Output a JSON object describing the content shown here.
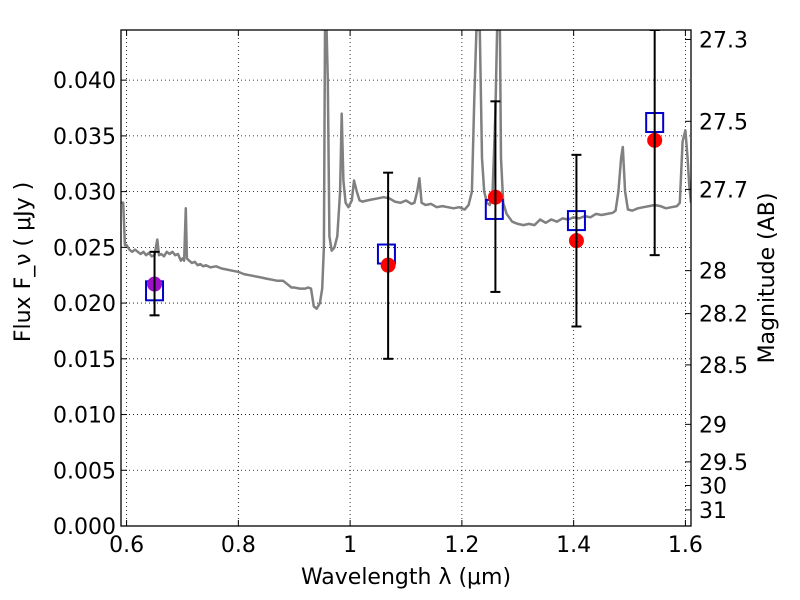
{
  "chart_data": {
    "type": "scatter",
    "title": "",
    "xlabel": "Wavelength  λ (μm)",
    "ylabel": "Flux  F_ν  ( μJy )",
    "ylabel_right": "Magnitude (AB)",
    "xlim": [
      0.59,
      1.61
    ],
    "ylim": [
      0.0,
      0.0445
    ],
    "grid": true,
    "x_ticks": [
      {
        "value": 0.6,
        "label": "0.6"
      },
      {
        "value": 0.8,
        "label": "0.8"
      },
      {
        "value": 1.0,
        "label": "1"
      },
      {
        "value": 1.2,
        "label": "1.2"
      },
      {
        "value": 1.4,
        "label": "1.4"
      },
      {
        "value": 1.6,
        "label": "1.6"
      }
    ],
    "y_ticks": [
      {
        "value": 0.0,
        "label": "0.000"
      },
      {
        "value": 0.005,
        "label": "0.005"
      },
      {
        "value": 0.01,
        "label": "0.010"
      },
      {
        "value": 0.015,
        "label": "0.015"
      },
      {
        "value": 0.02,
        "label": "0.020"
      },
      {
        "value": 0.025,
        "label": "0.025"
      },
      {
        "value": 0.03,
        "label": "0.030"
      },
      {
        "value": 0.035,
        "label": "0.035"
      },
      {
        "value": 0.04,
        "label": "0.040"
      }
    ],
    "right_ticks": [
      {
        "value": 27.3,
        "label": "27.3"
      },
      {
        "value": 27.5,
        "label": "27.5"
      },
      {
        "value": 27.7,
        "label": "27.7"
      },
      {
        "value": 28,
        "label": "28"
      },
      {
        "value": 28.2,
        "label": "28.2"
      },
      {
        "value": 28.5,
        "label": "28.5"
      },
      {
        "value": 29,
        "label": "29"
      },
      {
        "value": 29.5,
        "label": "29.5"
      },
      {
        "value": 30,
        "label": "30"
      },
      {
        "value": 31,
        "label": "31"
      }
    ],
    "series": [
      {
        "kind": "line",
        "color": "#808080",
        "points": [
          [
            0.59,
            0.029
          ],
          [
            0.594,
            0.029
          ],
          [
            0.597,
            0.0252
          ],
          [
            0.6,
            0.0252
          ],
          [
            0.605,
            0.0248
          ],
          [
            0.61,
            0.0246
          ],
          [
            0.615,
            0.0248
          ],
          [
            0.62,
            0.0246
          ],
          [
            0.625,
            0.0244
          ],
          [
            0.63,
            0.0246
          ],
          [
            0.635,
            0.0243
          ],
          [
            0.64,
            0.0245
          ],
          [
            0.645,
            0.0242
          ],
          [
            0.65,
            0.0243
          ],
          [
            0.655,
            0.0257
          ],
          [
            0.658,
            0.0243
          ],
          [
            0.662,
            0.0244
          ],
          [
            0.667,
            0.0242
          ],
          [
            0.672,
            0.0246
          ],
          [
            0.677,
            0.0244
          ],
          [
            0.682,
            0.0246
          ],
          [
            0.687,
            0.0243
          ],
          [
            0.692,
            0.0244
          ],
          [
            0.697,
            0.0238
          ],
          [
            0.7,
            0.024
          ],
          [
            0.703,
            0.0238
          ],
          [
            0.706,
            0.0285
          ],
          [
            0.708,
            0.024
          ],
          [
            0.712,
            0.0238
          ],
          [
            0.717,
            0.0236
          ],
          [
            0.722,
            0.0237
          ],
          [
            0.727,
            0.0234
          ],
          [
            0.732,
            0.0235
          ],
          [
            0.737,
            0.0233
          ],
          [
            0.742,
            0.0234
          ],
          [
            0.75,
            0.0232
          ],
          [
            0.76,
            0.0233
          ],
          [
            0.77,
            0.0231
          ],
          [
            0.78,
            0.023
          ],
          [
            0.79,
            0.0229
          ],
          [
            0.8,
            0.0228
          ],
          [
            0.81,
            0.0226
          ],
          [
            0.82,
            0.0225
          ],
          [
            0.83,
            0.0224
          ],
          [
            0.84,
            0.0223
          ],
          [
            0.85,
            0.0222
          ],
          [
            0.86,
            0.0221
          ],
          [
            0.87,
            0.022
          ],
          [
            0.88,
            0.022
          ],
          [
            0.89,
            0.0216
          ],
          [
            0.895,
            0.0214
          ],
          [
            0.9,
            0.0214
          ],
          [
            0.91,
            0.0213
          ],
          [
            0.92,
            0.0213
          ],
          [
            0.925,
            0.0214
          ],
          [
            0.93,
            0.0213
          ],
          [
            0.935,
            0.0197
          ],
          [
            0.94,
            0.0195
          ],
          [
            0.946,
            0.02
          ],
          [
            0.95,
            0.0213
          ],
          [
            0.953,
            0.025
          ],
          [
            0.955,
            0.0445
          ],
          [
            0.958,
            0.0445
          ],
          [
            0.96,
            0.04
          ],
          [
            0.963,
            0.026
          ],
          [
            0.967,
            0.0247
          ],
          [
            0.972,
            0.025
          ],
          [
            0.977,
            0.026
          ],
          [
            0.982,
            0.03
          ],
          [
            0.985,
            0.037
          ],
          [
            0.988,
            0.031
          ],
          [
            0.992,
            0.029
          ],
          [
            0.997,
            0.0286
          ],
          [
            1.003,
            0.0292
          ],
          [
            1.007,
            0.031
          ],
          [
            1.012,
            0.03
          ],
          [
            1.017,
            0.0292
          ],
          [
            1.022,
            0.0291
          ],
          [
            1.03,
            0.0292
          ],
          [
            1.04,
            0.0293
          ],
          [
            1.05,
            0.0294
          ],
          [
            1.06,
            0.0295
          ],
          [
            1.07,
            0.0294
          ],
          [
            1.08,
            0.0291
          ],
          [
            1.09,
            0.029
          ],
          [
            1.1,
            0.0292
          ],
          [
            1.11,
            0.0289
          ],
          [
            1.115,
            0.029
          ],
          [
            1.12,
            0.03
          ],
          [
            1.124,
            0.0312
          ],
          [
            1.128,
            0.029
          ],
          [
            1.135,
            0.0288
          ],
          [
            1.145,
            0.0289
          ],
          [
            1.155,
            0.0286
          ],
          [
            1.165,
            0.0287
          ],
          [
            1.175,
            0.0286
          ],
          [
            1.185,
            0.0285
          ],
          [
            1.195,
            0.0286
          ],
          [
            1.205,
            0.0284
          ],
          [
            1.212,
            0.0288
          ],
          [
            1.218,
            0.03
          ],
          [
            1.222,
            0.038
          ],
          [
            1.226,
            0.0445
          ],
          [
            1.232,
            0.0445
          ],
          [
            1.236,
            0.033
          ],
          [
            1.24,
            0.03
          ],
          [
            1.245,
            0.029
          ],
          [
            1.25,
            0.0288
          ],
          [
            1.255,
            0.03
          ],
          [
            1.26,
            0.037
          ],
          [
            1.263,
            0.0445
          ],
          [
            1.268,
            0.0445
          ],
          [
            1.27,
            0.033
          ],
          [
            1.274,
            0.029
          ],
          [
            1.28,
            0.028
          ],
          [
            1.29,
            0.0273
          ],
          [
            1.3,
            0.0271
          ],
          [
            1.31,
            0.027
          ],
          [
            1.32,
            0.0271
          ],
          [
            1.33,
            0.027
          ],
          [
            1.34,
            0.0275
          ],
          [
            1.35,
            0.0272
          ],
          [
            1.36,
            0.0275
          ],
          [
            1.37,
            0.0273
          ],
          [
            1.38,
            0.0276
          ],
          [
            1.39,
            0.0275
          ],
          [
            1.4,
            0.0277
          ],
          [
            1.41,
            0.0276
          ],
          [
            1.42,
            0.0278
          ],
          [
            1.43,
            0.0277
          ],
          [
            1.44,
            0.028
          ],
          [
            1.45,
            0.0279
          ],
          [
            1.46,
            0.028
          ],
          [
            1.47,
            0.0281
          ],
          [
            1.475,
            0.0283
          ],
          [
            1.48,
            0.03
          ],
          [
            1.485,
            0.033
          ],
          [
            1.488,
            0.034
          ],
          [
            1.492,
            0.03
          ],
          [
            1.497,
            0.0284
          ],
          [
            1.505,
            0.0283
          ],
          [
            1.515,
            0.0285
          ],
          [
            1.525,
            0.0286
          ],
          [
            1.535,
            0.0287
          ],
          [
            1.545,
            0.0288
          ],
          [
            1.555,
            0.0287
          ],
          [
            1.565,
            0.0285
          ],
          [
            1.575,
            0.0286
          ],
          [
            1.585,
            0.0287
          ],
          [
            1.59,
            0.029
          ],
          [
            1.595,
            0.0345
          ],
          [
            1.6,
            0.0355
          ],
          [
            1.604,
            0.033
          ],
          [
            1.607,
            0.0305
          ],
          [
            1.61,
            0.029
          ]
        ]
      },
      {
        "kind": "squares",
        "color": "#0000cc",
        "points": [
          [
            0.65,
            0.0211
          ],
          [
            1.065,
            0.0244
          ],
          [
            1.258,
            0.0284
          ],
          [
            1.405,
            0.0274
          ],
          [
            1.545,
            0.0362
          ]
        ]
      },
      {
        "kind": "circles",
        "color": "#ff0000",
        "overlap_color": "#9b10c8",
        "points": [
          [
            0.65,
            0.0217
          ],
          [
            1.068,
            0.0234
          ],
          [
            1.26,
            0.0295
          ],
          [
            1.405,
            0.0256
          ],
          [
            1.545,
            0.0346
          ]
        ]
      },
      {
        "kind": "errorbars",
        "color": "#000000",
        "bars": [
          {
            "x": 0.65,
            "low": 0.0189,
            "high": 0.0246
          },
          {
            "x": 1.068,
            "low": 0.015,
            "high": 0.0317
          },
          {
            "x": 1.26,
            "low": 0.021,
            "high": 0.0381
          },
          {
            "x": 1.405,
            "low": 0.0179,
            "high": 0.0333
          },
          {
            "x": 1.545,
            "low": 0.0243,
            "high": 0.0445
          }
        ]
      }
    ]
  }
}
